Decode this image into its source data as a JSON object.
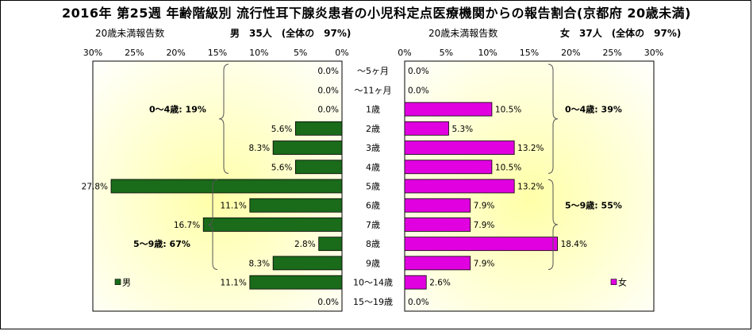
{
  "title": "2016年 第25週 年齢階級別 流行性耳下腺炎患者の小児科定点医療機関からの報告割合(京都府 20歳未満)",
  "left_header": {
    "caption": "20歳未満報告数",
    "summary": "男　35人　(全体の　97%)"
  },
  "right_header": {
    "caption": "20歳未満報告数",
    "summary": "女　37人　(全体の　97%)"
  },
  "colors": {
    "male": "#1a6b1a",
    "female": "#e000e0",
    "bg_yellow": "#ffffa8"
  },
  "chart_data": {
    "type": "bar",
    "orientation": "horizontal-butterfly",
    "categories": [
      "～5ヶ月",
      "～11ヶ月",
      "1歳",
      "2歳",
      "3歳",
      "4歳",
      "5歳",
      "6歳",
      "7歳",
      "8歳",
      "9歳",
      "10～14歳",
      "15～19歳"
    ],
    "axis_ticks": [
      "0%",
      "5%",
      "10%",
      "15%",
      "20%",
      "25%",
      "30%"
    ],
    "xlim": [
      0,
      30
    ],
    "series": [
      {
        "name": "男",
        "values": [
          0.0,
          0.0,
          0.0,
          5.6,
          8.3,
          5.6,
          27.8,
          11.1,
          16.7,
          2.8,
          8.3,
          11.1,
          0.0
        ],
        "labels": [
          "0.0%",
          "0.0%",
          "0.0%",
          "5.6%",
          "8.3%",
          "5.6%",
          "27.8%",
          "11.1%",
          "16.7%",
          "2.8%",
          "8.3%",
          "11.1%",
          "0.0%"
        ]
      },
      {
        "name": "女",
        "values": [
          0.0,
          0.0,
          10.5,
          5.3,
          13.2,
          10.5,
          13.2,
          7.9,
          7.9,
          18.4,
          7.9,
          2.6,
          0.0
        ],
        "labels": [
          "0.0%",
          "0.0%",
          "10.5%",
          "5.3%",
          "13.2%",
          "10.5%",
          "13.2%",
          "7.9%",
          "7.9%",
          "18.4%",
          "7.9%",
          "2.6%",
          "0.0%"
        ]
      }
    ],
    "annotations": {
      "male_0_4": "0～4歳: 19%",
      "male_5_9": "5～9歳: 67%",
      "female_0_4": "0～4歳: 39%",
      "female_5_9": "5～9歳: 55%"
    },
    "legend": {
      "male": "男",
      "female": "女",
      "placement": "bottom-left / bottom-right"
    }
  }
}
